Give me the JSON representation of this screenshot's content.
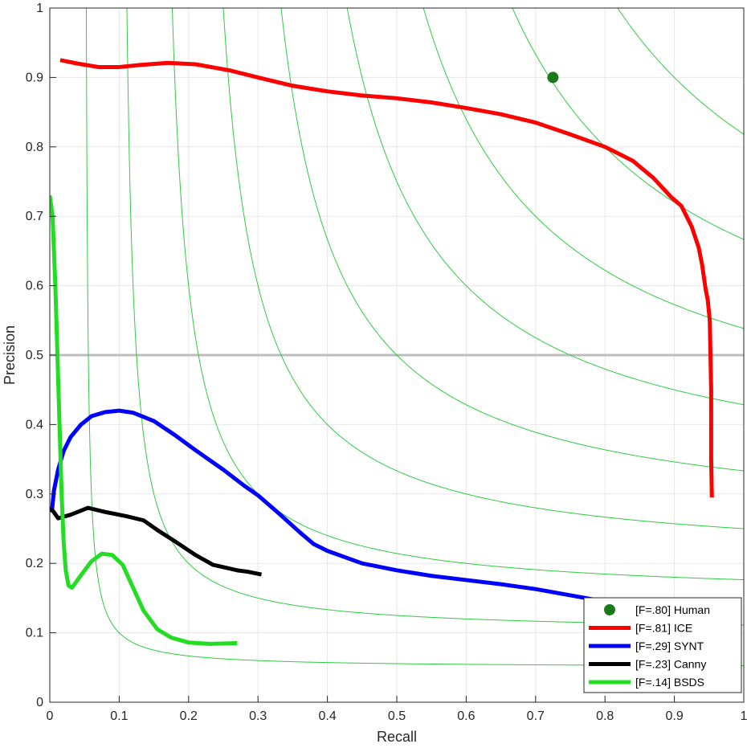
{
  "chart_data": {
    "type": "line",
    "xlabel": "Recall",
    "ylabel": "Precision",
    "xlim": [
      0,
      1
    ],
    "ylim": [
      0,
      1
    ],
    "grid": true,
    "legend_position": "bottom-right",
    "x_ticks": [
      "0",
      "0.1",
      "0.2",
      "0.3",
      "0.4",
      "0.5",
      "0.6",
      "0.7",
      "0.8",
      "0.9",
      "1"
    ],
    "y_ticks": [
      "0",
      "0.1",
      "0.2",
      "0.3",
      "0.4",
      "0.5",
      "0.6",
      "0.7",
      "0.8",
      "0.9",
      "1"
    ],
    "reference_line": {
      "y": 0.5,
      "color": "#bdbdbd"
    },
    "iso_f_curves": {
      "f_values": [
        0.1,
        0.2,
        0.3,
        0.4,
        0.5,
        0.6,
        0.7,
        0.8,
        0.9
      ],
      "color": "#2ecc40"
    },
    "human_point": {
      "name": "[F=.80] Human",
      "x": 0.725,
      "y": 0.9,
      "color": "#1a7a1a"
    },
    "series": [
      {
        "name": "[F=.81] ICE",
        "color": "#ff0000",
        "points": [
          [
            0.015,
            0.925
          ],
          [
            0.04,
            0.92
          ],
          [
            0.07,
            0.915
          ],
          [
            0.1,
            0.915
          ],
          [
            0.13,
            0.918
          ],
          [
            0.17,
            0.921
          ],
          [
            0.21,
            0.919
          ],
          [
            0.26,
            0.91
          ],
          [
            0.3,
            0.9
          ],
          [
            0.35,
            0.888
          ],
          [
            0.4,
            0.88
          ],
          [
            0.45,
            0.874
          ],
          [
            0.5,
            0.87
          ],
          [
            0.55,
            0.864
          ],
          [
            0.6,
            0.856
          ],
          [
            0.65,
            0.847
          ],
          [
            0.7,
            0.835
          ],
          [
            0.75,
            0.818
          ],
          [
            0.8,
            0.8
          ],
          [
            0.84,
            0.78
          ],
          [
            0.87,
            0.755
          ],
          [
            0.895,
            0.728
          ],
          [
            0.91,
            0.715
          ],
          [
            0.925,
            0.685
          ],
          [
            0.935,
            0.655
          ],
          [
            0.94,
            0.63
          ],
          [
            0.945,
            0.595
          ],
          [
            0.948,
            0.58
          ],
          [
            0.951,
            0.55
          ],
          [
            0.952,
            0.5
          ],
          [
            0.953,
            0.45
          ],
          [
            0.953,
            0.4
          ],
          [
            0.953,
            0.35
          ],
          [
            0.954,
            0.295
          ]
        ]
      },
      {
        "name": "[F=.29] SYNT",
        "color": "#0000ff",
        "points": [
          [
            0.003,
            0.275
          ],
          [
            0.006,
            0.305
          ],
          [
            0.012,
            0.335
          ],
          [
            0.02,
            0.362
          ],
          [
            0.03,
            0.382
          ],
          [
            0.045,
            0.4
          ],
          [
            0.06,
            0.412
          ],
          [
            0.08,
            0.418
          ],
          [
            0.1,
            0.42
          ],
          [
            0.12,
            0.417
          ],
          [
            0.15,
            0.405
          ],
          [
            0.18,
            0.385
          ],
          [
            0.21,
            0.363
          ],
          [
            0.25,
            0.335
          ],
          [
            0.28,
            0.312
          ],
          [
            0.3,
            0.298
          ],
          [
            0.33,
            0.272
          ],
          [
            0.36,
            0.245
          ],
          [
            0.38,
            0.228
          ],
          [
            0.4,
            0.218
          ],
          [
            0.45,
            0.2
          ],
          [
            0.5,
            0.19
          ],
          [
            0.55,
            0.182
          ],
          [
            0.6,
            0.176
          ],
          [
            0.65,
            0.17
          ],
          [
            0.7,
            0.163
          ],
          [
            0.75,
            0.154
          ],
          [
            0.8,
            0.145
          ],
          [
            0.85,
            0.135
          ]
        ]
      },
      {
        "name": "[F=.23] Canny",
        "color": "#000000",
        "points": [
          [
            0.0,
            0.278
          ],
          [
            0.005,
            0.275
          ],
          [
            0.012,
            0.265
          ],
          [
            0.03,
            0.27
          ],
          [
            0.055,
            0.28
          ],
          [
            0.08,
            0.274
          ],
          [
            0.11,
            0.268
          ],
          [
            0.135,
            0.262
          ],
          [
            0.155,
            0.248
          ],
          [
            0.18,
            0.232
          ],
          [
            0.21,
            0.212
          ],
          [
            0.235,
            0.198
          ],
          [
            0.27,
            0.19
          ],
          [
            0.285,
            0.188
          ],
          [
            0.305,
            0.184
          ]
        ]
      },
      {
        "name": "[F=.14] BSDS",
        "color": "#22dd22",
        "points": [
          [
            0.0,
            0.73
          ],
          [
            0.004,
            0.7
          ],
          [
            0.008,
            0.6
          ],
          [
            0.011,
            0.5
          ],
          [
            0.014,
            0.4
          ],
          [
            0.017,
            0.3
          ],
          [
            0.02,
            0.23
          ],
          [
            0.023,
            0.19
          ],
          [
            0.027,
            0.168
          ],
          [
            0.032,
            0.165
          ],
          [
            0.045,
            0.183
          ],
          [
            0.06,
            0.203
          ],
          [
            0.075,
            0.214
          ],
          [
            0.09,
            0.212
          ],
          [
            0.105,
            0.198
          ],
          [
            0.12,
            0.165
          ],
          [
            0.135,
            0.132
          ],
          [
            0.155,
            0.105
          ],
          [
            0.175,
            0.093
          ],
          [
            0.2,
            0.086
          ],
          [
            0.23,
            0.084
          ],
          [
            0.27,
            0.085
          ]
        ]
      }
    ]
  }
}
